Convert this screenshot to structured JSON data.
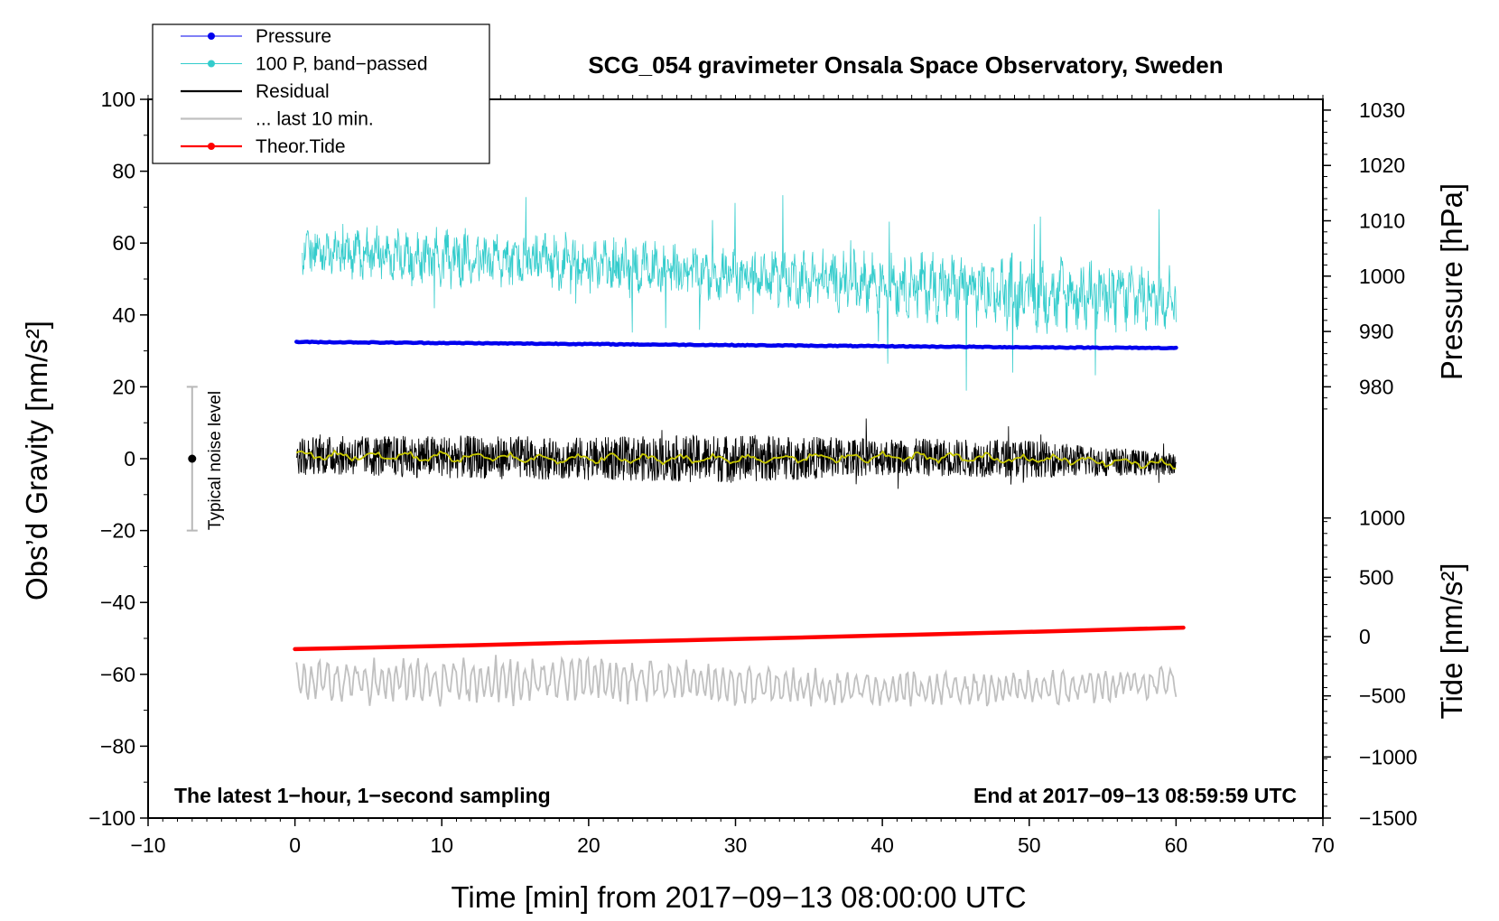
{
  "chart_data": {
    "type": "line",
    "title": "SCG_054 gravimeter Onsala Space Observatory, Sweden",
    "xlabel": "Time [min] from 2017−09−13 08:00:00 UTC",
    "ylabel_left": "Obs’d Gravity [nm/s²]",
    "ylabel_right_top": "Pressure [hPa]",
    "ylabel_right_bottom": "Tide [nm/s²]",
    "xlim": [
      -10,
      70
    ],
    "ylim": [
      -100,
      100
    ],
    "xticks": [
      -10,
      0,
      10,
      20,
      30,
      40,
      50,
      60,
      70
    ],
    "xtick_labels": [
      "−10",
      "0",
      "10",
      "20",
      "30",
      "40",
      "50",
      "60",
      "70"
    ],
    "yticks": [
      -100,
      -80,
      -60,
      -40,
      -20,
      0,
      20,
      40,
      60,
      80,
      100
    ],
    "ytick_labels": [
      "−100",
      "−80",
      "−60",
      "−40",
      "−20",
      "0",
      "20",
      "40",
      "60",
      "80",
      "100"
    ],
    "pressure_axis": {
      "ticks": [
        980,
        990,
        1000,
        1010,
        1020,
        1030
      ],
      "tick_labels": [
        "980",
        "990",
        "1000",
        "1010",
        "1020",
        "1030"
      ],
      "gravity_equiv": [
        20,
        35.4,
        50.8,
        66.2,
        81.6,
        97.0
      ]
    },
    "tide_axis": {
      "ticks": [
        -1500,
        -1000,
        -500,
        0,
        500,
        1000
      ],
      "tick_labels": [
        "−1500",
        "−1000",
        "−500",
        "0",
        "500",
        "1000"
      ],
      "gravity_equiv": [
        -100,
        -83,
        -66,
        -49.5,
        -33,
        -16.5
      ]
    },
    "legend_position": "top-left",
    "series": [
      {
        "name": "Pressure",
        "color": "#0000ee",
        "x": [
          0,
          10,
          20,
          30,
          40,
          50,
          60
        ],
        "y": [
          32.5,
          32.2,
          31.9,
          31.6,
          31.3,
          31.0,
          30.8
        ]
      },
      {
        "name": "100 P, band−passed",
        "color": "#33cccc",
        "x": [
          0,
          10,
          20,
          30,
          40,
          50,
          60
        ],
        "y": [
          58,
          56,
          54,
          51,
          49,
          46,
          45
        ],
        "spread": [
          8,
          10,
          10,
          9,
          11,
          13,
          12
        ]
      },
      {
        "name": "Residual",
        "color": "#000000",
        "x": [
          0,
          10,
          20,
          30,
          40,
          50,
          60
        ],
        "y": [
          1,
          0.5,
          0,
          0,
          0.5,
          0,
          -1.5
        ],
        "spread": [
          7,
          8,
          8,
          9,
          7,
          7,
          4
        ]
      },
      {
        "name": "... last 10 min.",
        "color": "#c0c0c0",
        "x": [
          0,
          10,
          20,
          30,
          40,
          50,
          60
        ],
        "y": [
          -62,
          -62,
          -61,
          -63,
          -64,
          -64,
          -62
        ],
        "spread": [
          6,
          7,
          7,
          6,
          5,
          5,
          5
        ]
      },
      {
        "name": "Theor.Tide",
        "color": "#ff0000",
        "x": [
          0,
          10,
          20,
          30,
          40,
          50,
          60.5
        ],
        "y": [
          -53,
          -52.1,
          -51.1,
          -50.2,
          -49.2,
          -48.2,
          -47
        ]
      }
    ],
    "smoothed_residual_color": "#c8c800",
    "noise_bar": {
      "x": -7,
      "y": 0,
      "low": -20,
      "high": 20,
      "label": "Typical noise level"
    },
    "annotations": {
      "bottom_left": "The latest 1−hour, 1−second sampling",
      "bottom_right": "End at 2017−09−13 08:59:59 UTC"
    }
  }
}
